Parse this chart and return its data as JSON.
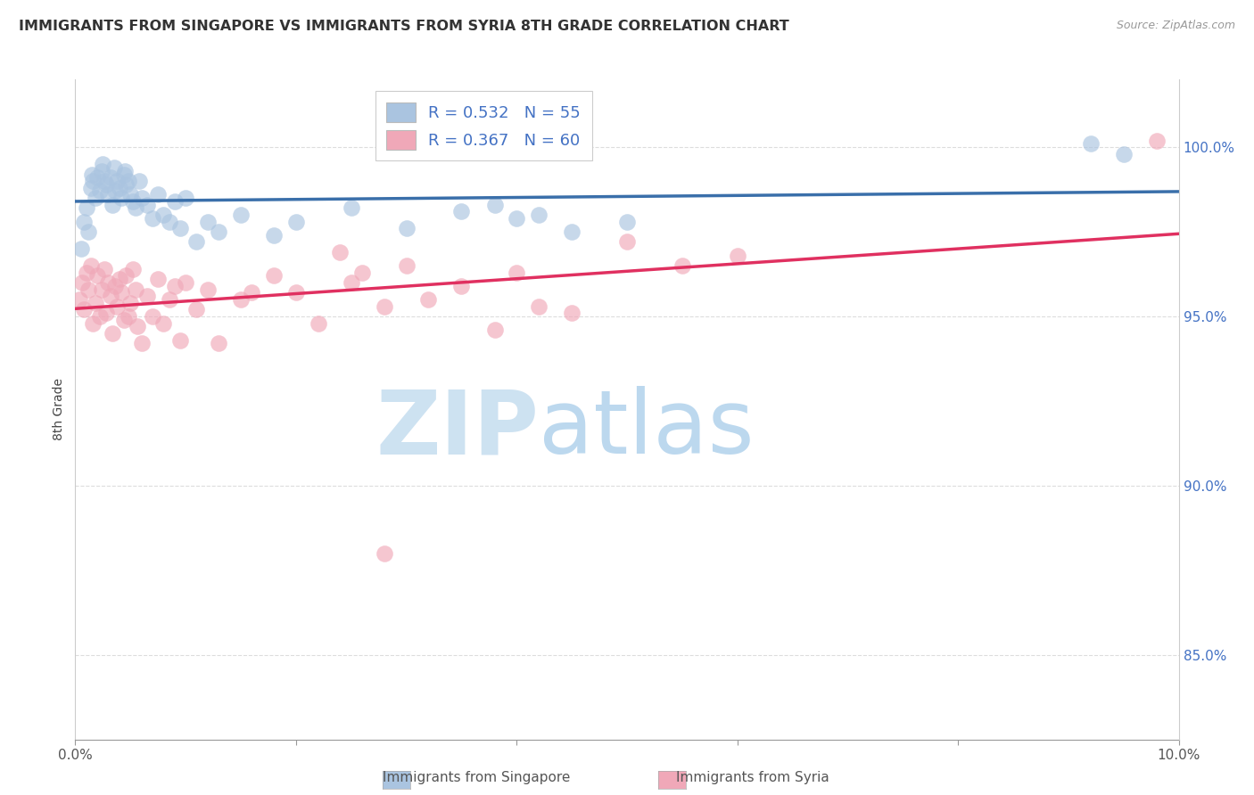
{
  "title": "IMMIGRANTS FROM SINGAPORE VS IMMIGRANTS FROM SYRIA 8TH GRADE CORRELATION CHART",
  "source": "Source: ZipAtlas.com",
  "ylabel": "8th Grade",
  "ytick_labels": [
    "85.0%",
    "90.0%",
    "95.0%",
    "100.0%"
  ],
  "ytick_values": [
    85.0,
    90.0,
    95.0,
    100.0
  ],
  "xlim": [
    0.0,
    10.0
  ],
  "ylim": [
    82.5,
    102.0
  ],
  "R_singapore": 0.532,
  "N_singapore": 55,
  "R_syria": 0.367,
  "N_syria": 60,
  "color_singapore": "#aac4e0",
  "color_syria": "#f0a8b8",
  "line_color_singapore": "#3a6faa",
  "line_color_syria": "#e03060",
  "watermark_zip_color": "#c8dff0",
  "watermark_atlas_color": "#a0c8e8",
  "singapore_x": [
    0.05,
    0.08,
    0.1,
    0.12,
    0.14,
    0.15,
    0.16,
    0.18,
    0.2,
    0.22,
    0.24,
    0.25,
    0.26,
    0.28,
    0.3,
    0.32,
    0.34,
    0.35,
    0.36,
    0.38,
    0.4,
    0.42,
    0.44,
    0.45,
    0.46,
    0.48,
    0.5,
    0.52,
    0.55,
    0.58,
    0.6,
    0.65,
    0.7,
    0.75,
    0.8,
    0.85,
    0.9,
    0.95,
    1.0,
    1.1,
    1.2,
    1.3,
    1.5,
    1.8,
    2.0,
    2.5,
    3.0,
    3.5,
    4.0,
    3.8,
    4.2,
    4.5,
    5.0,
    9.2,
    9.5
  ],
  "singapore_y": [
    97.0,
    97.8,
    98.2,
    97.5,
    98.8,
    99.2,
    99.0,
    98.5,
    99.1,
    98.7,
    99.3,
    99.5,
    99.0,
    98.9,
    98.6,
    99.1,
    98.3,
    99.4,
    98.7,
    99.0,
    98.8,
    98.5,
    99.2,
    99.3,
    98.9,
    99.0,
    98.6,
    98.4,
    98.2,
    99.0,
    98.5,
    98.3,
    97.9,
    98.6,
    98.0,
    97.8,
    98.4,
    97.6,
    98.5,
    97.2,
    97.8,
    97.5,
    98.0,
    97.4,
    97.8,
    98.2,
    97.6,
    98.1,
    97.9,
    98.3,
    98.0,
    97.5,
    97.8,
    100.1,
    99.8
  ],
  "syria_x": [
    0.04,
    0.06,
    0.08,
    0.1,
    0.12,
    0.14,
    0.16,
    0.18,
    0.2,
    0.22,
    0.24,
    0.26,
    0.28,
    0.3,
    0.32,
    0.34,
    0.36,
    0.38,
    0.4,
    0.42,
    0.44,
    0.46,
    0.5,
    0.55,
    0.6,
    0.65,
    0.7,
    0.75,
    0.8,
    0.85,
    0.9,
    0.95,
    1.0,
    1.1,
    1.2,
    1.5,
    1.8,
    2.0,
    2.2,
    2.5,
    2.8,
    3.0,
    3.5,
    3.8,
    4.0,
    4.5,
    5.0,
    5.5,
    6.0,
    1.3,
    1.6,
    2.6,
    3.2,
    0.48,
    0.52,
    0.56,
    2.4,
    4.2,
    9.8,
    2.8
  ],
  "syria_y": [
    95.5,
    96.0,
    95.2,
    96.3,
    95.8,
    96.5,
    94.8,
    95.4,
    96.2,
    95.0,
    95.8,
    96.4,
    95.1,
    96.0,
    95.6,
    94.5,
    95.9,
    95.3,
    96.1,
    95.7,
    94.9,
    96.2,
    95.4,
    95.8,
    94.2,
    95.6,
    95.0,
    96.1,
    94.8,
    95.5,
    95.9,
    94.3,
    96.0,
    95.2,
    95.8,
    95.5,
    96.2,
    95.7,
    94.8,
    96.0,
    95.3,
    96.5,
    95.9,
    94.6,
    96.3,
    95.1,
    97.2,
    96.5,
    96.8,
    94.2,
    95.7,
    96.3,
    95.5,
    95.0,
    96.4,
    94.7,
    96.9,
    95.3,
    100.2,
    88.0
  ]
}
